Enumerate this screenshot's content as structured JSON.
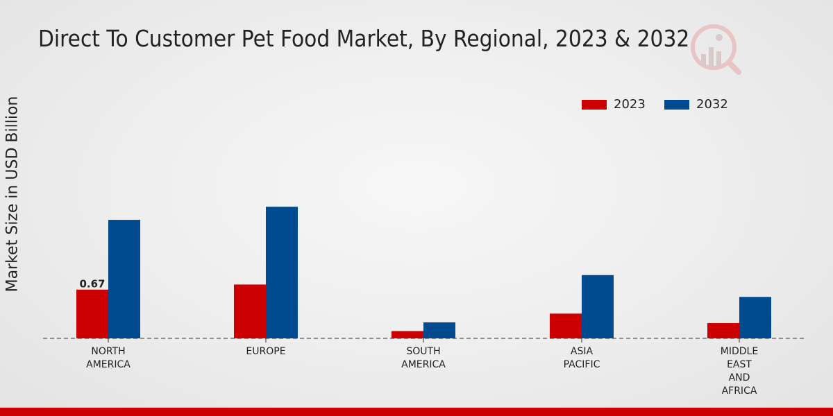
{
  "chart_data": {
    "type": "bar",
    "title": "Direct To Customer Pet Food Market, By Regional, 2023 & 2032",
    "xlabel": "",
    "ylabel": "Market Size in USD Billion",
    "categories": [
      "NORTH\nAMERICA",
      "EUROPE",
      "SOUTH\nAMERICA",
      "ASIA\nPACIFIC",
      "MIDDLE\nEAST\nAND\nAFRICA"
    ],
    "series": [
      {
        "name": "2023",
        "color": "#cc0000",
        "values": [
          0.67,
          0.74,
          0.1,
          0.34,
          0.21
        ]
      },
      {
        "name": "2032",
        "color": "#004a8f",
        "values": [
          1.63,
          1.81,
          0.22,
          0.87,
          0.57
        ]
      }
    ],
    "data_labels": [
      {
        "series": 0,
        "index": 0,
        "text": "0.67"
      }
    ],
    "ylim": [
      0,
      3.7
    ],
    "legend_position": "top-right",
    "grid": false
  },
  "colors": {
    "bottom_bar": "#cc0000"
  }
}
